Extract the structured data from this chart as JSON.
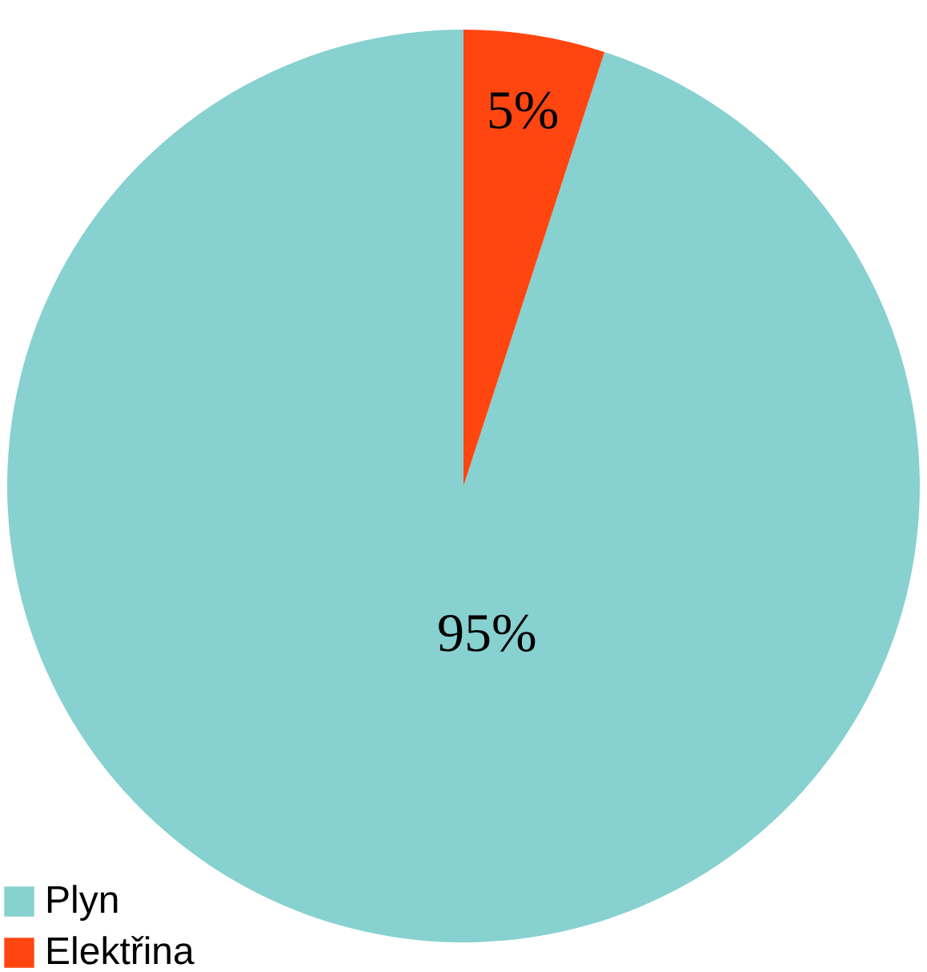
{
  "chart_data": {
    "type": "pie",
    "categories": [
      "Plyn",
      "Elektřina"
    ],
    "values": [
      95,
      5
    ],
    "colors": [
      "#87d1d0",
      "#ff4611"
    ],
    "value_labels": [
      "95%",
      "5%"
    ],
    "legend": "bottom left"
  }
}
